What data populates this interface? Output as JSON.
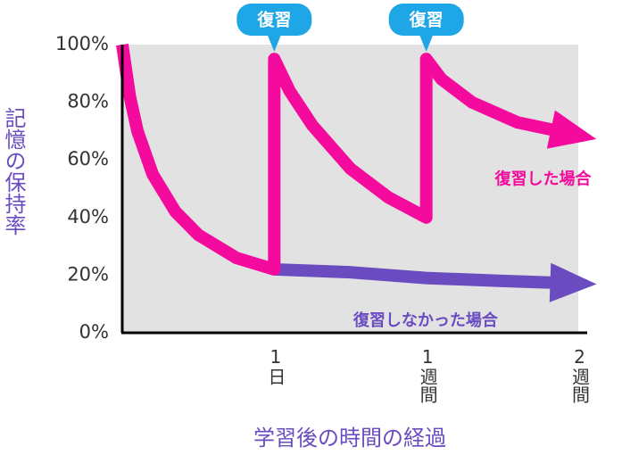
{
  "chart_data": {
    "type": "line",
    "y_label": "記憶の保持率",
    "x_label": "学習後の時間の経過",
    "ylim": [
      0,
      100
    ],
    "yticks": [
      {
        "value": 0,
        "label": "0%"
      },
      {
        "value": 20,
        "label": "20%"
      },
      {
        "value": 40,
        "label": "40%"
      },
      {
        "value": 60,
        "label": "60%"
      },
      {
        "value": 80,
        "label": "80%"
      },
      {
        "value": 100,
        "label": "100%"
      }
    ],
    "xlim": [
      0,
      3
    ],
    "xticks": [
      {
        "value": 1,
        "label": "1日"
      },
      {
        "value": 2,
        "label": "1週間"
      },
      {
        "value": 3,
        "label": "2週間"
      }
    ],
    "grid": false,
    "annotations": [
      "復習",
      "復習"
    ],
    "series": [
      {
        "name": "復習しなかった場合",
        "color": "#6a4cc0",
        "x": [
          1,
          1.5,
          2,
          2.5,
          3.05
        ],
        "values": [
          22,
          21,
          19,
          18,
          17
        ]
      },
      {
        "name": "復習した場合",
        "color": "#f40a9c",
        "x": [
          0,
          0.05,
          0.1,
          0.2,
          0.35,
          0.5,
          0.75,
          1,
          1,
          1.1,
          1.25,
          1.5,
          1.75,
          2,
          2,
          2.1,
          2.3,
          2.6,
          3.05
        ],
        "values": [
          100,
          82,
          70,
          55,
          42,
          34,
          26,
          22,
          95,
          84,
          72,
          57,
          47,
          40,
          95,
          88,
          80,
          73,
          68
        ]
      }
    ]
  }
}
